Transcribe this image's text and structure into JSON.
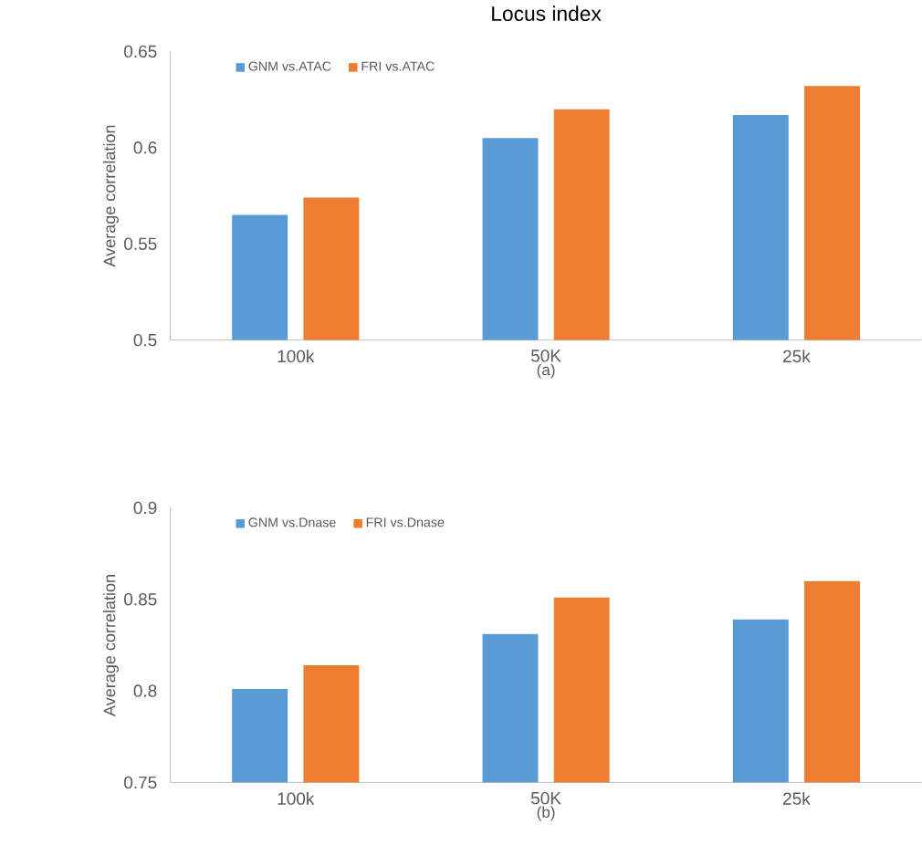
{
  "chart_data": [
    {
      "type": "bar",
      "title": "Locus index",
      "xlabel": "(a)",
      "ylabel": "Average correlation",
      "categories": [
        "100k",
        "50K",
        "25k"
      ],
      "series": [
        {
          "name": "GNM vs.ATAC",
          "color": "#5b9bd5",
          "values": [
            0.565,
            0.605,
            0.617
          ]
        },
        {
          "name": "FRI vs.ATAC",
          "color": "#ed7d31",
          "values": [
            0.574,
            0.62,
            0.632
          ]
        }
      ],
      "ylim": [
        0.5,
        0.65
      ],
      "yticks": [
        0.5,
        0.55,
        0.6,
        0.65
      ],
      "legend": "top left"
    },
    {
      "type": "bar",
      "xlabel": "(b)",
      "ylabel": "Average correlation",
      "categories": [
        "100k",
        "50K",
        "25k"
      ],
      "series": [
        {
          "name": "GNM vs.Dnase",
          "color": "#5b9bd5",
          "values": [
            0.801,
            0.831,
            0.839
          ]
        },
        {
          "name": "FRI vs.Dnase",
          "color": "#ed7d31",
          "values": [
            0.814,
            0.851,
            0.86
          ]
        }
      ],
      "ylim": [
        0.75,
        0.9
      ],
      "yticks": [
        0.75,
        0.8,
        0.85,
        0.9
      ],
      "legend": "top left"
    }
  ]
}
